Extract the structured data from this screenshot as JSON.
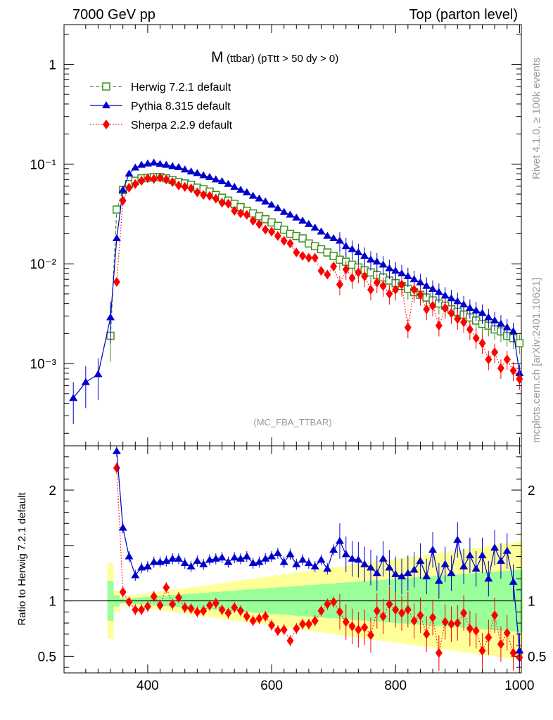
{
  "header": {
    "left": "7000 GeV pp",
    "right": "Top (parton level)"
  },
  "side": {
    "rivet": "Rivet 4.1.0, ≥ 100k events",
    "mcplots": "mcplots.cern.ch [arXiv:2401.10621]"
  },
  "colors": {
    "herwig": "#3d8f1e",
    "pythia": "#0000cc",
    "sherpa": "#ff0000",
    "band_yellow": "#ffff99",
    "band_green": "#99ff99"
  },
  "chart_data": {
    "type": "line",
    "title_main": "M",
    "title_sub": "(ttbar) (pTtt > 50 dy > 0)",
    "watermark": "(MC_FBA_TTBAR)",
    "x": [
      280,
      300,
      320,
      340,
      350,
      360,
      370,
      380,
      390,
      400,
      410,
      420,
      430,
      440,
      450,
      460,
      470,
      480,
      490,
      500,
      510,
      520,
      530,
      540,
      550,
      560,
      570,
      580,
      590,
      600,
      610,
      620,
      630,
      640,
      650,
      660,
      670,
      680,
      690,
      700,
      710,
      720,
      730,
      740,
      750,
      760,
      770,
      780,
      790,
      800,
      810,
      820,
      830,
      840,
      850,
      860,
      870,
      880,
      890,
      900,
      910,
      920,
      930,
      940,
      950,
      960,
      970,
      980,
      990,
      1000
    ],
    "xlim": [
      265,
      1003
    ],
    "xticks": [
      400,
      600,
      800,
      1000
    ],
    "top_panel": {
      "scale": "log",
      "ylim": [
        0.00015,
        2.5
      ],
      "yticks": [
        {
          "value": 1,
          "label": "1"
        },
        {
          "value": 0.1,
          "label": "10⁻¹"
        },
        {
          "value": 0.01,
          "label": "10⁻²"
        },
        {
          "value": 0.001,
          "label": "10⁻³"
        }
      ]
    },
    "ratio_panel": {
      "ylabel": "Ratio to Herwig 7.2.1 default",
      "ylim": [
        0.35,
        2.4
      ],
      "yticks": [
        {
          "value": 0.5,
          "label": "0.5"
        },
        {
          "value": 1,
          "label": "1"
        },
        {
          "value": 2,
          "label": "2"
        }
      ]
    },
    "series": [
      {
        "name": "Herwig 7.2.1 default",
        "key": "herwig",
        "style": "dashed",
        "marker": "open-square",
        "values": [
          null,
          null,
          null,
          0.0019,
          0.035,
          0.055,
          0.063,
          0.068,
          0.072,
          0.073,
          0.074,
          0.074,
          0.072,
          0.069,
          0.066,
          0.064,
          0.062,
          0.058,
          0.056,
          0.053,
          0.049,
          0.046,
          0.043,
          0.04,
          0.037,
          0.034,
          0.032,
          0.03,
          0.028,
          0.026,
          0.024,
          0.022,
          0.02,
          0.019,
          0.018,
          0.016,
          0.015,
          0.014,
          0.013,
          0.012,
          0.011,
          0.0105,
          0.0098,
          0.0092,
          0.0086,
          0.0082,
          0.0077,
          0.0073,
          0.0068,
          0.0064,
          0.006,
          0.0056,
          0.0052,
          0.0049,
          0.0046,
          0.0043,
          0.004,
          0.0038,
          0.0035,
          0.0033,
          0.0031,
          0.0029,
          0.0027,
          0.0025,
          0.0024,
          0.0022,
          0.0021,
          0.0019,
          0.0018,
          0.0016
        ]
      },
      {
        "name": "Pythia 8.315 default",
        "key": "pythia",
        "style": "solid",
        "marker": "triangle",
        "values": [
          0.00045,
          0.00065,
          0.00078,
          0.0029,
          0.018,
          0.055,
          0.08,
          0.092,
          0.098,
          0.101,
          0.103,
          0.1,
          0.098,
          0.095,
          0.093,
          0.088,
          0.084,
          0.081,
          0.077,
          0.074,
          0.07,
          0.067,
          0.063,
          0.059,
          0.055,
          0.052,
          0.048,
          0.045,
          0.042,
          0.039,
          0.036,
          0.033,
          0.031,
          0.029,
          0.027,
          0.025,
          0.023,
          0.021,
          0.019,
          0.018,
          0.017,
          0.015,
          0.014,
          0.013,
          0.012,
          0.011,
          0.0105,
          0.0098,
          0.009,
          0.0085,
          0.008,
          0.0075,
          0.007,
          0.0065,
          0.006,
          0.0056,
          0.0052,
          0.0048,
          0.0045,
          0.0042,
          0.0039,
          0.0036,
          0.0034,
          0.0032,
          0.0029,
          0.0027,
          0.0025,
          0.0023,
          0.0021,
          0.0008
        ]
      },
      {
        "name": "Sherpa 2.2.9 default",
        "key": "sherpa",
        "style": "dotted",
        "marker": "diamond",
        "values": [
          null,
          null,
          null,
          null,
          0.0066,
          0.043,
          0.058,
          0.063,
          0.068,
          0.072,
          0.071,
          0.073,
          0.07,
          0.066,
          0.061,
          0.059,
          0.057,
          0.052,
          0.049,
          0.048,
          0.045,
          0.041,
          0.04,
          0.034,
          0.032,
          0.031,
          0.027,
          0.025,
          0.022,
          0.021,
          0.019,
          0.017,
          0.016,
          0.013,
          0.012,
          0.0115,
          0.0115,
          0.0085,
          0.0078,
          0.0094,
          0.0062,
          0.0088,
          0.0072,
          0.0082,
          0.0075,
          0.0055,
          0.0065,
          0.006,
          0.005,
          0.0055,
          0.0062,
          0.0023,
          0.0055,
          0.0049,
          0.0035,
          0.0038,
          0.0024,
          0.0036,
          0.0032,
          0.0028,
          0.0026,
          0.0022,
          0.0018,
          0.0016,
          0.0011,
          0.0013,
          0.0009,
          0.0011,
          0.00085,
          0.0007
        ]
      }
    ],
    "ratios": {
      "pythia": [
        null,
        null,
        null,
        null,
        2.35,
        1.66,
        1.4,
        1.23,
        1.3,
        1.31,
        1.35,
        1.35,
        1.36,
        1.38,
        1.38,
        1.34,
        1.31,
        1.36,
        1.33,
        1.37,
        1.38,
        1.39,
        1.35,
        1.39,
        1.38,
        1.4,
        1.34,
        1.35,
        1.38,
        1.4,
        1.43,
        1.35,
        1.42,
        1.33,
        1.37,
        1.34,
        1.31,
        1.37,
        1.29,
        1.46,
        1.54,
        1.42,
        1.38,
        1.37,
        1.33,
        1.3,
        1.25,
        1.38,
        1.3,
        1.24,
        1.22,
        1.25,
        1.28,
        1.36,
        1.22,
        1.46,
        1.18,
        1.33,
        1.25,
        1.55,
        1.31,
        1.41,
        1.29,
        1.41,
        1.2,
        1.48,
        1.36,
        1.45,
        1.17,
        0.55
      ],
      "sherpa": [
        null,
        null,
        null,
        null,
        2.2,
        1.08,
        0.99,
        0.92,
        0.92,
        0.95,
        1.04,
        0.96,
        1.12,
        0.97,
        1.03,
        0.94,
        0.93,
        0.9,
        0.91,
        0.96,
        0.98,
        0.92,
        0.89,
        0.94,
        0.91,
        0.86,
        0.82,
        0.84,
        0.86,
        0.78,
        0.73,
        0.74,
        0.64,
        0.75,
        0.79,
        0.79,
        0.82,
        0.91,
        0.97,
        0.99,
        0.9,
        0.81,
        0.77,
        0.74,
        0.76,
        0.69,
        0.91,
        0.86,
        0.97,
        0.92,
        0.89,
        0.92,
        0.82,
        0.87,
        0.7,
        0.85,
        0.53,
        0.81,
        0.79,
        0.8,
        0.89,
        0.75,
        0.73,
        0.55,
        0.67,
        0.87,
        0.61,
        0.71,
        0.53,
        0.49
      ]
    }
  }
}
